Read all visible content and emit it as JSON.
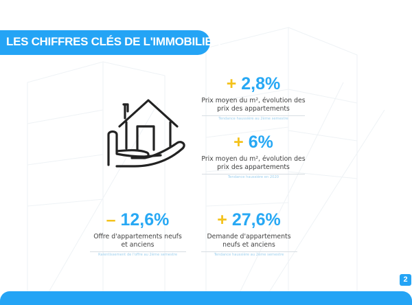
{
  "page": {
    "title": "LES CHIFFRES CLÉS DE L'IMMOBILIER",
    "number": "2"
  },
  "colors": {
    "accent": "#24a4f5",
    "sign": "#f4c21b",
    "text": "#3f3f3f"
  },
  "hero_icon": "house-in-hand-icon",
  "stats": [
    {
      "sign": "+",
      "value": "2,8%",
      "description_1": "Prix moyen du m², évolution des",
      "description_2": "prix des appartements",
      "note": "Tendance haussière au 2ème semestre"
    },
    {
      "sign": "+",
      "value": "6%",
      "description_1": "Prix moyen du m², évolution des",
      "description_2": "prix des appartements",
      "note": "Tendance haussière en 2020"
    },
    {
      "sign": "–",
      "value": "12,6%",
      "description_1": "Offre d'appartements neufs",
      "description_2": "et anciens",
      "note": "Ralentissement de l'offre au 2ème semestre"
    },
    {
      "sign": "+",
      "value": "27,6%",
      "description_1": "Demande d'appartements",
      "description_2": "neufs et anciens",
      "note": "Tendance haussière au 2ème semestre"
    }
  ]
}
